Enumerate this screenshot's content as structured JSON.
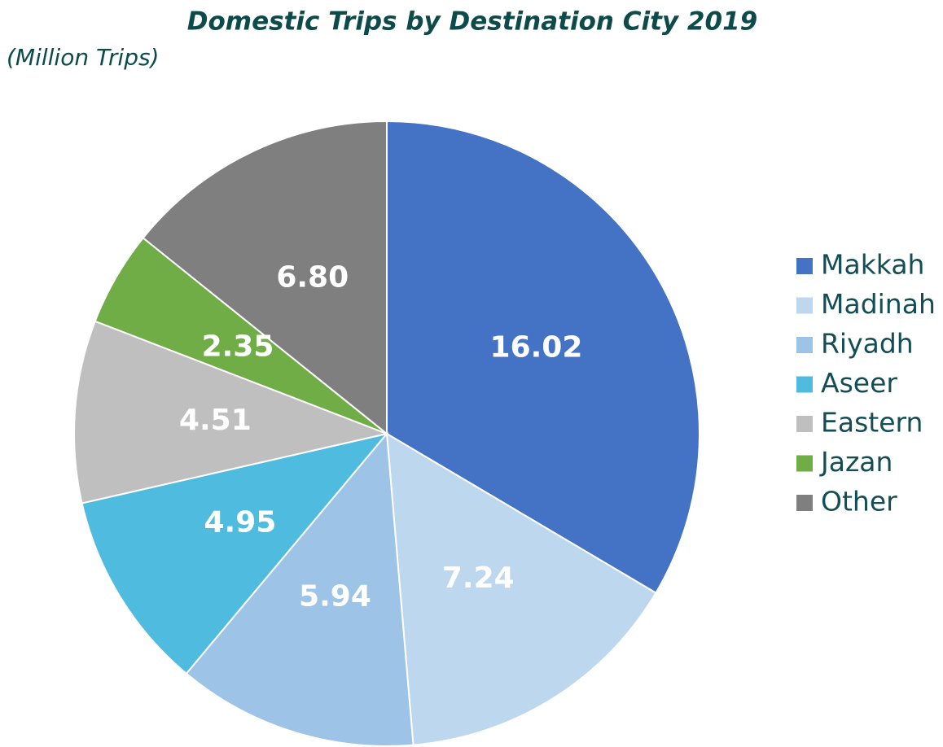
{
  "chart_data": {
    "type": "pie",
    "title": "Domestic Trips by Destination City 2019",
    "subtitle": "(Million Trips)",
    "categories": [
      "Makkah",
      "Madinah",
      "Riyadh",
      "Aseer",
      "Eastern",
      "Jazan",
      "Other"
    ],
    "values": [
      16.02,
      7.24,
      5.94,
      4.95,
      4.51,
      2.35,
      6.8
    ],
    "value_labels": [
      "16.02",
      "7.24",
      "5.94",
      "4.95",
      "4.51",
      "2.35",
      "6.80"
    ],
    "colors": [
      "#4472c4",
      "#bdd7ee",
      "#9dc3e6",
      "#4fbcdf",
      "#bfbfbf",
      "#70ad47",
      "#7f7f7f"
    ],
    "legend": "right"
  }
}
